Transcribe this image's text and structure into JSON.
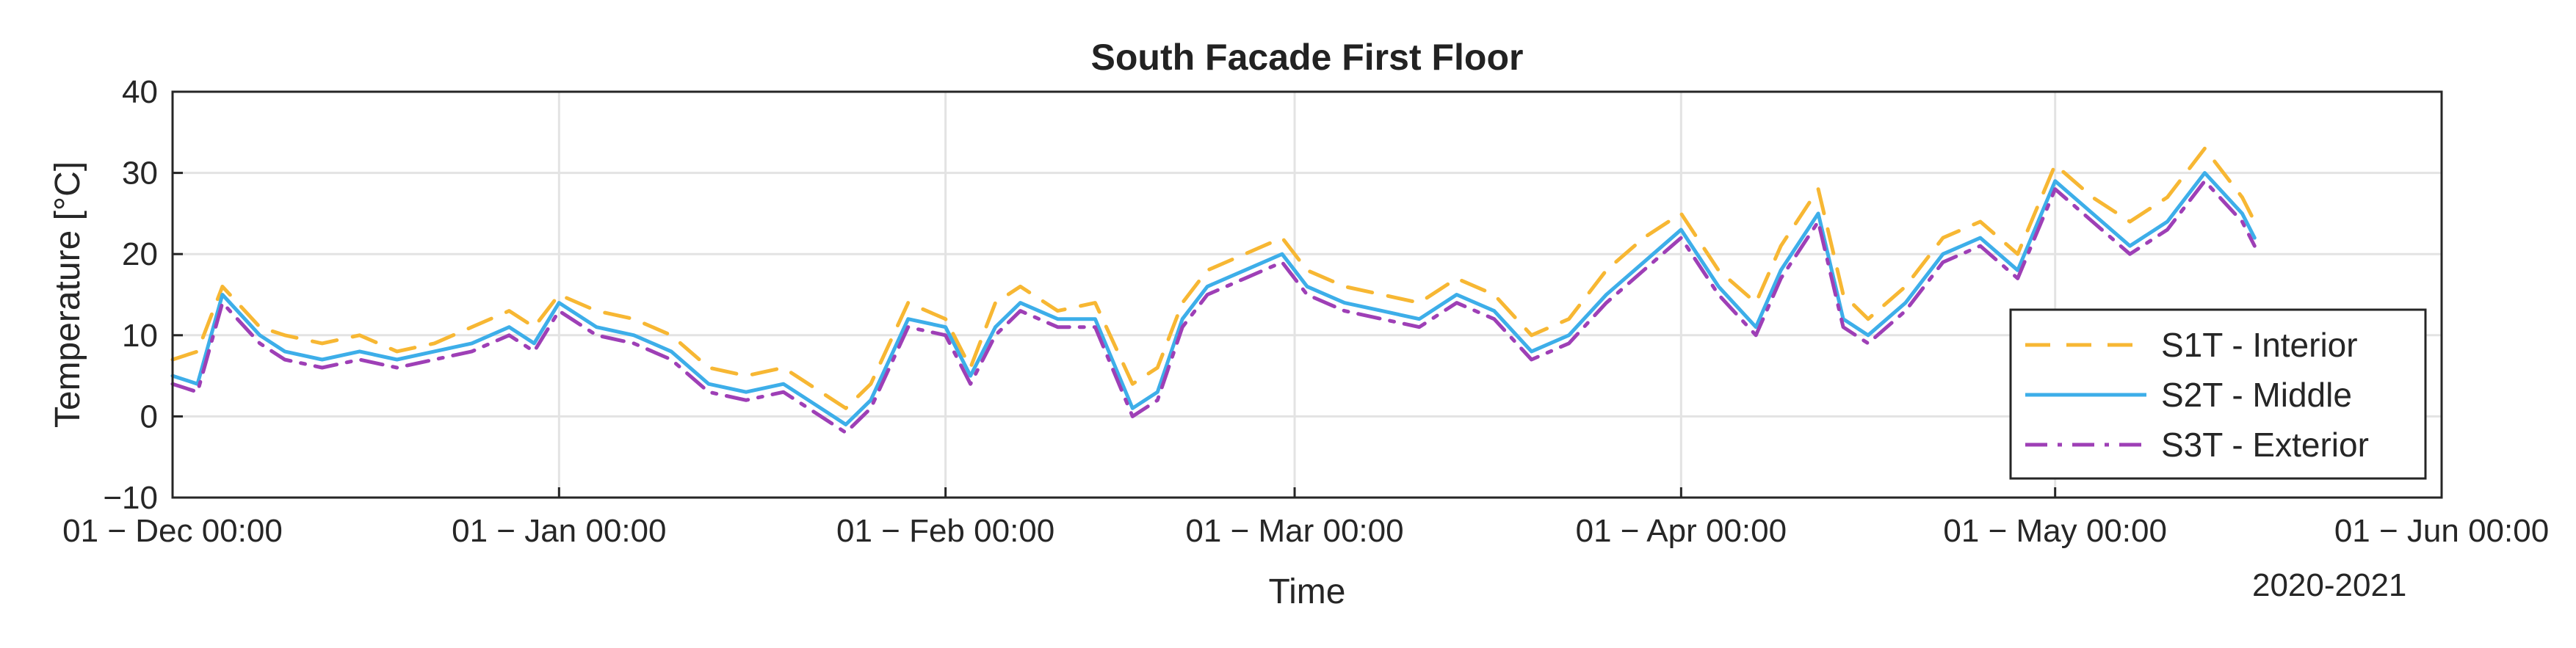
{
  "chart_data": {
    "type": "line",
    "title": "South Facade First Floor",
    "xlabel": "Time",
    "ylabel": "Temperature [°C]",
    "x_secondary_label": "2020-2021",
    "ylim": [
      -10,
      40
    ],
    "yticks": [
      -10,
      0,
      10,
      20,
      30,
      40
    ],
    "ytick_labels": [
      "−10",
      "0",
      "10",
      "20",
      "30",
      "40"
    ],
    "xlim": [
      "2020-12-01",
      "2021-06-01"
    ],
    "xticks": [
      "2020-12-01",
      "2021-01-01",
      "2021-02-01",
      "2021-03-01",
      "2021-04-01",
      "2021-05-01",
      "2021-06-01"
    ],
    "xtick_labels": [
      "01 − Dec 00:00",
      "01 − Jan 00:00",
      "01 − Feb 00:00",
      "01 − Mar 00:00",
      "01 − Apr 00:00",
      "01 − May 00:00",
      "01 − Jun 00:00"
    ],
    "grid": true,
    "legend_position": "right",
    "x": [
      "2020-12-01",
      "2020-12-03",
      "2020-12-05",
      "2020-12-08",
      "2020-12-10",
      "2020-12-13",
      "2020-12-16",
      "2020-12-19",
      "2020-12-22",
      "2020-12-25",
      "2020-12-28",
      "2020-12-30",
      "2021-01-01",
      "2021-01-04",
      "2021-01-07",
      "2021-01-10",
      "2021-01-13",
      "2021-01-16",
      "2021-01-19",
      "2021-01-22",
      "2021-01-24",
      "2021-01-26",
      "2021-01-29",
      "2021-02-01",
      "2021-02-03",
      "2021-02-05",
      "2021-02-07",
      "2021-02-10",
      "2021-02-13",
      "2021-02-16",
      "2021-02-18",
      "2021-02-20",
      "2021-02-22",
      "2021-02-25",
      "2021-02-28",
      "2021-03-02",
      "2021-03-05",
      "2021-03-08",
      "2021-03-11",
      "2021-03-14",
      "2021-03-17",
      "2021-03-20",
      "2021-03-23",
      "2021-03-26",
      "2021-03-29",
      "2021-04-01",
      "2021-04-04",
      "2021-04-07",
      "2021-04-09",
      "2021-04-12",
      "2021-04-14",
      "2021-04-16",
      "2021-04-19",
      "2021-04-22",
      "2021-04-25",
      "2021-04-28",
      "2021-05-01",
      "2021-05-04",
      "2021-05-07",
      "2021-05-10",
      "2021-05-13",
      "2021-05-16",
      "2021-05-17"
    ],
    "series": [
      {
        "name": "S1T - Interior",
        "color": "#f7b733",
        "dash": "dashed",
        "values": [
          7,
          8,
          16,
          11,
          10,
          9,
          10,
          8,
          9,
          11,
          13,
          11,
          15,
          13,
          12,
          10,
          6,
          5,
          6,
          3,
          1,
          4,
          14,
          12,
          6,
          14,
          16,
          13,
          14,
          4,
          6,
          14,
          18,
          20,
          22,
          18,
          16,
          15,
          14,
          17,
          15,
          10,
          12,
          18,
          22,
          25,
          18,
          14,
          21,
          28,
          15,
          12,
          16,
          22,
          24,
          20,
          31,
          27,
          24,
          27,
          33,
          27,
          24
        ]
      },
      {
        "name": "S2T - Middle",
        "color": "#3daee9",
        "dash": "solid",
        "values": [
          5,
          4,
          15,
          10,
          8,
          7,
          8,
          7,
          8,
          9,
          11,
          9,
          14,
          11,
          10,
          8,
          4,
          3,
          4,
          1,
          -1,
          2,
          12,
          11,
          5,
          11,
          14,
          12,
          12,
          1,
          3,
          12,
          16,
          18,
          20,
          16,
          14,
          13,
          12,
          15,
          13,
          8,
          10,
          15,
          19,
          23,
          16,
          11,
          18,
          25,
          12,
          10,
          14,
          20,
          22,
          18,
          29,
          25,
          21,
          24,
          30,
          25,
          22
        ]
      },
      {
        "name": "S3T - Exterior",
        "color": "#9e3fb6",
        "dash": "dashdot",
        "values": [
          4,
          3,
          14,
          9,
          7,
          6,
          7,
          6,
          7,
          8,
          10,
          8,
          13,
          10,
          9,
          7,
          3,
          2,
          3,
          0,
          -2,
          1,
          11,
          10,
          4,
          10,
          13,
          11,
          11,
          0,
          2,
          11,
          15,
          17,
          19,
          15,
          13,
          12,
          11,
          14,
          12,
          7,
          9,
          14,
          18,
          22,
          15,
          10,
          17,
          24,
          11,
          9,
          13,
          19,
          21,
          17,
          28,
          24,
          20,
          23,
          29,
          24,
          21
        ]
      }
    ]
  }
}
